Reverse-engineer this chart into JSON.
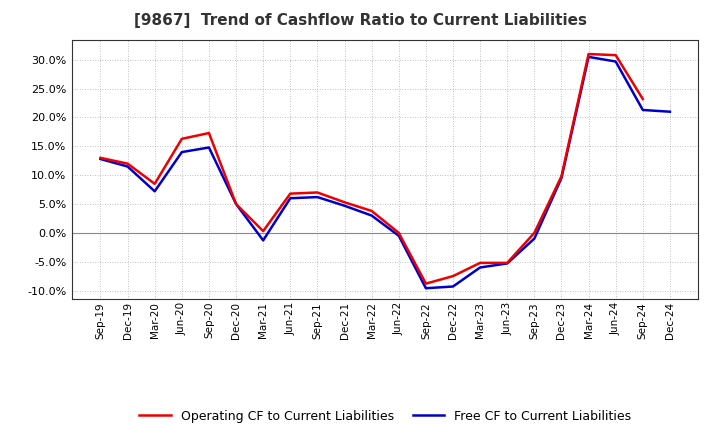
{
  "title": "[9867]  Trend of Cashflow Ratio to Current Liabilities",
  "x_labels": [
    "Sep-19",
    "Dec-19",
    "Mar-20",
    "Jun-20",
    "Sep-20",
    "Dec-20",
    "Mar-21",
    "Jun-21",
    "Sep-21",
    "Dec-21",
    "Mar-22",
    "Jun-22",
    "Sep-22",
    "Dec-22",
    "Mar-23",
    "Jun-23",
    "Sep-23",
    "Dec-23",
    "Mar-24",
    "Jun-24",
    "Sep-24",
    "Dec-24"
  ],
  "operating_cf": [
    0.13,
    0.12,
    0.085,
    0.163,
    0.173,
    0.05,
    0.003,
    0.068,
    0.07,
    0.053,
    0.038,
    0.0,
    -0.088,
    -0.075,
    -0.052,
    -0.052,
    0.0,
    0.098,
    0.31,
    0.308,
    0.232,
    null
  ],
  "free_cf": [
    0.128,
    0.115,
    0.072,
    0.14,
    0.148,
    0.05,
    -0.013,
    0.06,
    0.062,
    0.047,
    0.03,
    -0.005,
    -0.096,
    -0.093,
    -0.06,
    -0.053,
    -0.01,
    0.095,
    0.305,
    0.297,
    0.213,
    0.21
  ],
  "ylim": [
    -0.115,
    0.335
  ],
  "yticks": [
    -0.1,
    -0.05,
    0.0,
    0.05,
    0.1,
    0.15,
    0.2,
    0.25,
    0.3
  ],
  "operating_color": "#ee0000",
  "free_color": "#0000cc",
  "background_color": "#ffffff",
  "plot_bg_color": "#ffffff",
  "grid_color": "#999999",
  "title_color": "#333333",
  "legend_operating": "Operating CF to Current Liabilities",
  "legend_free": "Free CF to Current Liabilities"
}
